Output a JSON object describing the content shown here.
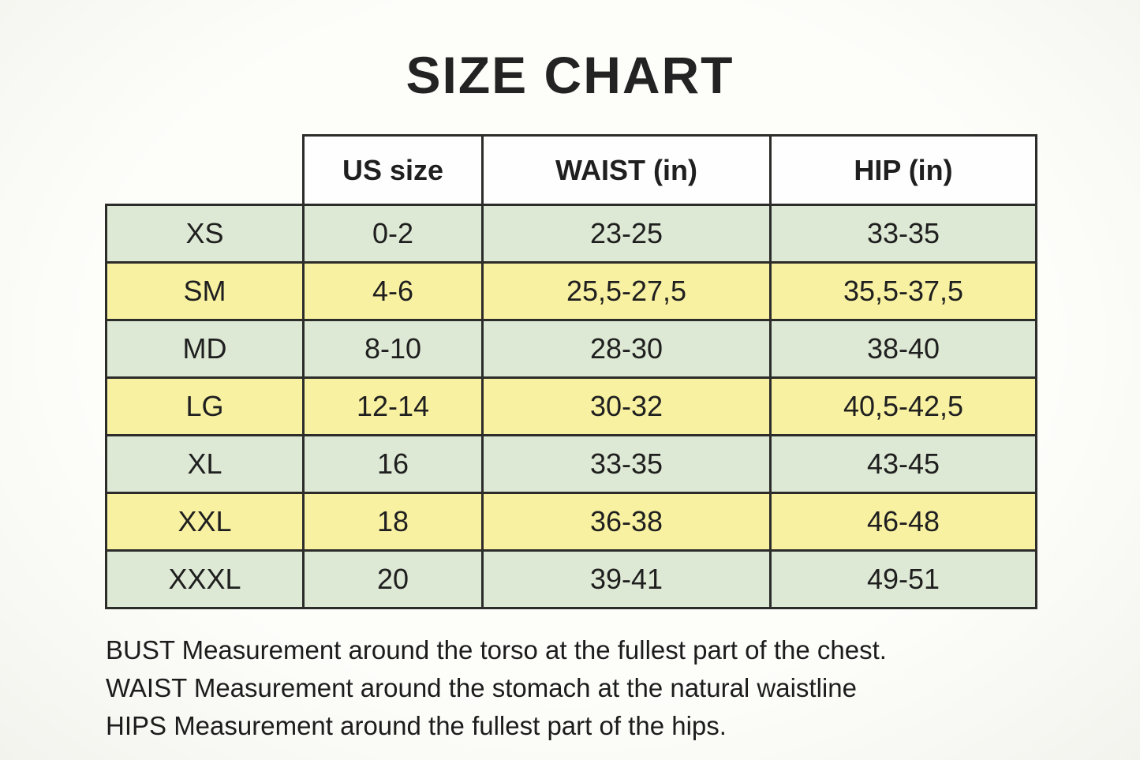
{
  "title": "SIZE CHART",
  "colors": {
    "background": "#fbfbf7",
    "row_green": "#dde9d4",
    "row_yellow": "#f8f1a2",
    "header_bg": "#fefefe",
    "border": "#2c2c2a",
    "text": "#1f1f1f"
  },
  "table": {
    "columns": [
      "US size",
      "WAIST (in)",
      "HIP (in)"
    ],
    "rows": [
      {
        "size": "XS",
        "us": "0-2",
        "waist": "23-25",
        "hip": "33-35"
      },
      {
        "size": "SM",
        "us": "4-6",
        "waist": "25,5-27,5",
        "hip": "35,5-37,5"
      },
      {
        "size": "MD",
        "us": "8-10",
        "waist": "28-30",
        "hip": "38-40"
      },
      {
        "size": "LG",
        "us": "12-14",
        "waist": "30-32",
        "hip": "40,5-42,5"
      },
      {
        "size": "XL",
        "us": "16",
        "waist": "33-35",
        "hip": "43-45"
      },
      {
        "size": "XXL",
        "us": "18",
        "waist": "36-38",
        "hip": "46-48"
      },
      {
        "size": "XXXL",
        "us": "20",
        "waist": "39-41",
        "hip": "49-51"
      }
    ]
  },
  "notes": [
    "BUST Measurement around the torso at the fullest part of the chest.",
    "WAIST Measurement around the stomach at the natural waistline",
    "HIPS Measurement around the fullest part of the hips."
  ]
}
